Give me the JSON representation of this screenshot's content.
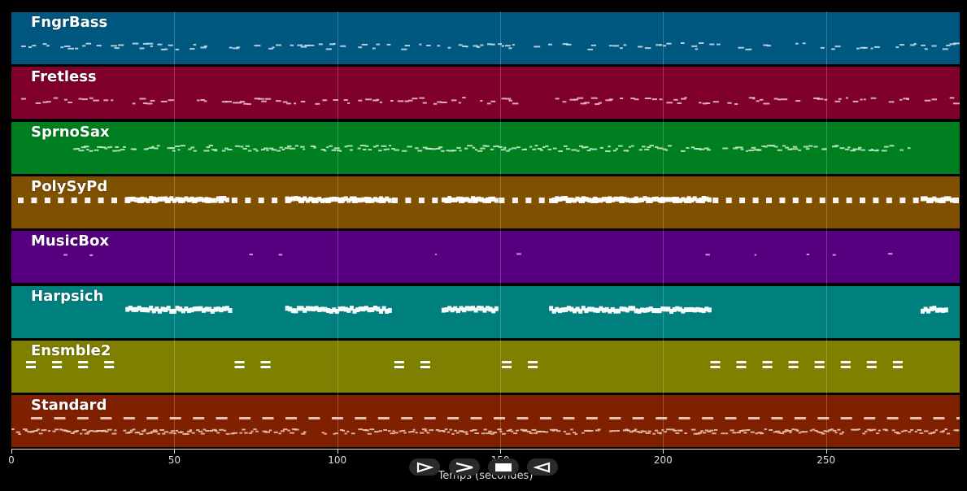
{
  "player": {
    "x_axis_label": "Temps (secondes)",
    "ticks": [
      "0",
      "50",
      "100",
      "150",
      "200",
      "250"
    ],
    "tick_values": [
      0,
      50,
      100,
      150,
      200,
      250
    ],
    "x_max": 291,
    "controls": [
      {
        "name": "play-icon",
        "label": "play"
      },
      {
        "name": "forward-icon",
        "label": "forward"
      },
      {
        "name": "stop-icon",
        "label": "stop"
      },
      {
        "name": "rewind-icon",
        "label": "rewind"
      }
    ]
  },
  "tracks": [
    {
      "name": "FngrBass",
      "color": "#00577f",
      "pattern": "sparse",
      "ranges": [
        [
          0,
          291
        ]
      ],
      "note_color": "#cfe3ee"
    },
    {
      "name": "Fretless",
      "color": "#7f0028",
      "pattern": "sparse",
      "ranges": [
        [
          0,
          291
        ]
      ],
      "note_color": "#f0c6d3"
    },
    {
      "name": "SprnoSax",
      "color": "#007f20",
      "pattern": "dense-small",
      "ranges": [
        [
          19,
          278
        ]
      ],
      "note_color": "#c9f0cf"
    },
    {
      "name": "PolySyPd",
      "color": "#7f5000",
      "pattern": "blocks",
      "ranges": [
        [
          2,
          291
        ]
      ],
      "note_color": "#ffffff"
    },
    {
      "name": "MusicBox",
      "color": "#56007f",
      "pattern": "rare",
      "ranges": [
        [
          16,
          272
        ]
      ],
      "note_color": "#d9c0ee"
    },
    {
      "name": "Harpsich",
      "color": "#007f7f",
      "pattern": "clusters",
      "ranges": [
        [
          35,
          67
        ],
        [
          84,
          116
        ],
        [
          132,
          149
        ],
        [
          165,
          214
        ],
        [
          279,
          287
        ]
      ],
      "note_color": "#ffffff"
    },
    {
      "name": "Ensmble2",
      "color": "#7f7f00",
      "pattern": "pairs",
      "positions": [
        6,
        14,
        22,
        30,
        70,
        78,
        119,
        127,
        152,
        160,
        216,
        224,
        232,
        240,
        248,
        256,
        264,
        272
      ],
      "note_color": "#ffffff"
    },
    {
      "name": "Standard",
      "color": "#7f2000",
      "pattern": "drums",
      "ranges": [
        [
          0,
          291
        ]
      ],
      "note_color": "#f5d3c3"
    }
  ]
}
